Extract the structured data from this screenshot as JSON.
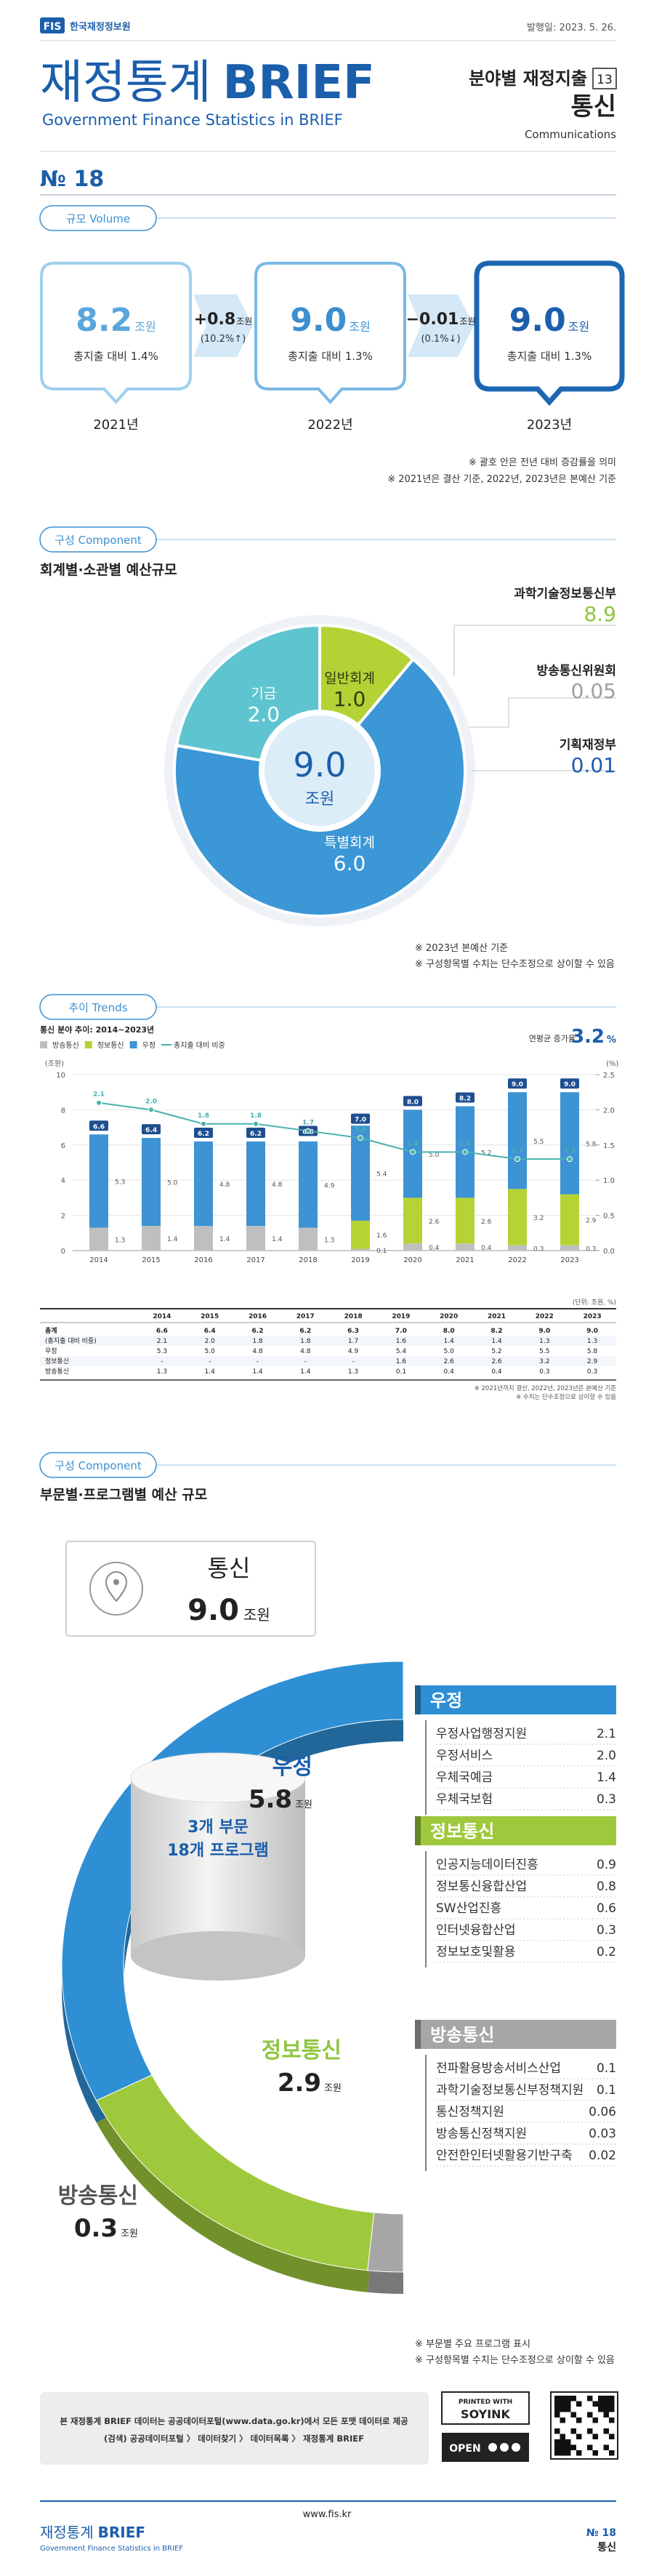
{
  "header": {
    "logo": "FIS",
    "org": "한국재정정보원",
    "date": "발행일: 2023. 5. 26.",
    "title_light": "재정통계",
    "title_bold": "BRIEF",
    "subtitle": "Government Finance Statistics in BRIEF",
    "series_label": "분야별 재정지출",
    "series_no": "13",
    "field": "통신",
    "field_en": "Communications",
    "issue": "№ 18"
  },
  "volume": {
    "section": "규모 Volume",
    "boxes": [
      {
        "amount": "8.2",
        "unit": "조원",
        "share": "총지출 대비 1.4%",
        "year": "2021년"
      },
      {
        "amount": "9.0",
        "unit": "조원",
        "share": "총지출 대비 1.3%",
        "year": "2022년"
      },
      {
        "amount": "9.0",
        "unit": "조원",
        "share": "총지출 대비 1.3%",
        "year": "2023년"
      }
    ],
    "changes": [
      {
        "amount": "+0.8",
        "unit": "조원",
        "rate": "(10.2%↑)"
      },
      {
        "amount": "−0.01",
        "unit": "조원",
        "rate": "(0.1%↓)"
      }
    ],
    "notes": [
      "※ 괄호 안은 전년 대비 증감률을 의미",
      "※ 2021년은 결산 기준, 2022년, 2023년은 본예산 기준"
    ]
  },
  "component1": {
    "section": "구성 Component",
    "title": "회계별·소관별 예산규모",
    "ministries": [
      {
        "name": "과학기술정보통신부",
        "value": "8.9"
      },
      {
        "name": "방송통신위원회",
        "value": "0.05"
      },
      {
        "name": "기획재정부",
        "value": "0.01"
      }
    ],
    "notes": [
      "※ 2023년 본예산 기준",
      "※ 구성항목별 수치는 단수조정으로 상이할 수 있음"
    ]
  },
  "trends": {
    "section": "추이 Trends",
    "table": {
      "unit": "(단위: 조원, %)",
      "header": [
        "2014",
        "2015",
        "2016",
        "2017",
        "2018",
        "2019",
        "2020",
        "2021",
        "2022",
        "2023"
      ],
      "rows": [
        {
          "label": "총계",
          "cells": [
            "6.6",
            "6.4",
            "6.2",
            "6.2",
            "6.3",
            "7.0",
            "8.0",
            "8.2",
            "9.0",
            "9.0"
          ]
        },
        {
          "label": "(총지출 대비 비중)",
          "cells": [
            "2.1",
            "2.0",
            "1.8",
            "1.8",
            "1.7",
            "1.6",
            "1.4",
            "1.4",
            "1.3",
            "1.3"
          ]
        },
        {
          "label": "우정",
          "cells": [
            "5.3",
            "5.0",
            "4.8",
            "4.8",
            "4.9",
            "5.4",
            "5.0",
            "5.2",
            "5.5",
            "5.8"
          ]
        },
        {
          "label": "정보통신",
          "cells": [
            "-",
            "-",
            "-",
            "-",
            "-",
            "1.6",
            "2.6",
            "2.6",
            "3.2",
            "2.9"
          ]
        },
        {
          "label": "방송통신",
          "cells": [
            "1.3",
            "1.4",
            "1.4",
            "1.4",
            "1.3",
            "0.1",
            "0.4",
            "0.4",
            "0.3",
            "0.3"
          ]
        }
      ]
    },
    "notes": [
      "※ 2021년까지 결산, 2022년, 2023년은 본예산 기준",
      "※ 수치는 단수조정으로 상이할 수 있음"
    ]
  },
  "component2": {
    "section": "구성 Component",
    "title": "부문별·프로그램별 예산 규모",
    "inner": [
      "3개 부문",
      "18개 프로그램"
    ],
    "programs": [
      {
        "items": [
          {
            "name": "우정사업행정지원",
            "value": "2.1"
          },
          {
            "name": "우정서비스",
            "value": "2.0"
          },
          {
            "name": "우체국예금",
            "value": "1.4"
          },
          {
            "name": "우체국보험",
            "value": "0.3"
          }
        ]
      },
      {
        "items": [
          {
            "name": "인공지능데이터진흥",
            "value": "0.9"
          },
          {
            "name": "정보통신융합산업",
            "value": "0.8"
          },
          {
            "name": "SW산업진흥",
            "value": "0.6"
          },
          {
            "name": "인터넷융합산업",
            "value": "0.3"
          },
          {
            "name": "정보보호및활용",
            "value": "0.2"
          }
        ]
      },
      {
        "items": [
          {
            "name": "전파활용방송서비스산업",
            "value": "0.1"
          },
          {
            "name": "과학기술정보통신부정책지원",
            "value": "0.1"
          },
          {
            "name": "통신정책지원",
            "value": "0.06"
          },
          {
            "name": "방송통신정책지원",
            "value": "0.03"
          },
          {
            "name": "안전한인터넷활용기반구축",
            "value": "0.02"
          }
        ]
      }
    ],
    "notes": [
      "※ 부문별 주요 프로그램 표시",
      "※ 구성항목별 수치는 단수조정으로 상이할 수 있음"
    ]
  },
  "footer": {
    "notice": [
      "본 재정통계 BRIEF 데이터는 공공데이터포털(www.data.go.kr)에서 모든 포맷 데이터로 제공",
      "(검색) 공공데이터포털 〉 데이터찾기 〉 데이터목록 〉 재정통계 BRIEF"
    ],
    "badges": [
      "PRINTED WITH",
      "SOYINK",
      "OPEN"
    ],
    "url": "www.fis.kr",
    "issue": "№ 18",
    "field": "통신",
    "brand_light": "재정통계",
    "brand_bold": "BRIEF",
    "brand_sub": "Government Finance Statistics in BRIEF"
  },
  "chart_data": [
    {
      "type": "pie",
      "donut": true,
      "categories": [
        "일반회계",
        "특별회계",
        "기금"
      ],
      "values": [
        1,
        6,
        2
      ],
      "value_labels": [
        "1.0",
        "6.0",
        "2.0"
      ],
      "colors": [
        "#b2d235",
        "#3b97d6",
        "#5ec5d0"
      ],
      "total": "9.0",
      "unit": "조원"
    },
    {
      "type": "bar",
      "stacked": true,
      "title": "통신 분야 추이: 2014~2023년",
      "annotation": "연평균 증가율",
      "cagr": "3.2",
      "cagr_unit": "%",
      "y_label": "(조원)",
      "y2_label": "(%)",
      "categories": [
        "2014",
        "2015",
        "2016",
        "2017",
        "2018",
        "2019",
        "2020",
        "2021",
        "2022",
        "2023"
      ],
      "series": [
        {
          "name": "방송통신",
          "color": "#bfbfbf",
          "values": [
            1.3,
            1.4,
            1.4,
            1.4,
            1.3,
            0.1,
            0.4,
            0.4,
            0.3,
            0.3
          ],
          "value_labels": [
            "1.3",
            "1.4",
            "1.4",
            "1.4",
            "1.3",
            "0.1",
            "0.4",
            "0.4",
            "0.3",
            "0.3"
          ]
        },
        {
          "name": "정보통신",
          "color": "#b5d334",
          "values": [
            null,
            null,
            null,
            null,
            null,
            1.6,
            2.6,
            2.6,
            3.2,
            2.9
          ],
          "value_labels": [
            null,
            null,
            null,
            null,
            null,
            "1.6",
            "2.6",
            "2.6",
            "3.2",
            "2.9"
          ]
        },
        {
          "name": "우정",
          "color": "#3d93d3",
          "values": [
            5.3,
            5.0,
            4.8,
            4.8,
            4.9,
            5.4,
            5.0,
            5.2,
            5.5,
            5.8
          ],
          "value_labels": [
            "5.3",
            "5.0",
            "4.8",
            "4.8",
            "4.9",
            "5.4",
            "5.0",
            "5.2",
            "5.5",
            "5.8"
          ]
        },
        {
          "name": "총지출 대비 비중",
          "type": "line",
          "axis": "y2",
          "color": "#49b1ae",
          "values": [
            2.1,
            2.0,
            1.8,
            1.8,
            1.7,
            1.6,
            1.4,
            1.4,
            1.3,
            1.3
          ],
          "value_labels": [
            "2.1",
            "2.0",
            "1.8",
            "1.8",
            "1.7",
            "1.6",
            "1.4",
            "1.4",
            "1.3",
            "1.3"
          ]
        }
      ],
      "totals": [
        6.6,
        6.4,
        6.2,
        6.2,
        6.3,
        7.0,
        8.0,
        8.2,
        9.0,
        9.0
      ],
      "totals_labels": [
        "6.6",
        "6.4",
        "6.2",
        "6.2",
        "6.3",
        "7.0",
        "8.0",
        "8.2",
        "9.0",
        "9.0"
      ],
      "ylim": [
        0,
        10
      ],
      "yticks": [
        0,
        2,
        4,
        6,
        8,
        10
      ],
      "y2lim": [
        0,
        2.5
      ],
      "y2ticks": [
        {
          "value": 0,
          "label": "0.0"
        },
        0.5,
        {
          "value": 1,
          "label": "1.0"
        },
        1.5,
        {
          "value": 2,
          "label": "2.0"
        },
        2.5
      ],
      "grid": true,
      "legend": "top-left"
    },
    {
      "type": "half-donut",
      "title": "통신",
      "total": "9.0",
      "unit": "조원",
      "categories": [
        "우정",
        "정보통신",
        "방송통신"
      ],
      "values": [
        5.8,
        2.9,
        0.3
      ],
      "value_labels": [
        "5.8",
        "2.9",
        "0.3"
      ],
      "colors": [
        "#2f8fd5",
        "#9fc93c",
        "#a6a6a6"
      ]
    }
  ]
}
